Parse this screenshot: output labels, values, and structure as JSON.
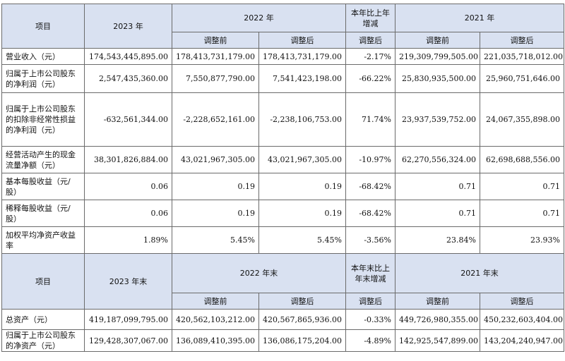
{
  "header1": {
    "item": "项目",
    "y2023": "2023 年",
    "y2022": "2022 年",
    "change": "本年比上年增减",
    "y2021": "2021 年",
    "before": "调整前",
    "after": "调整后",
    "change_after": "调整后",
    "before2": "调整前",
    "after2": "调整后"
  },
  "rows1": [
    {
      "label": "营业收入（元）",
      "v2023": "174,543,445,895.00",
      "v2022b": "178,413,731,179.00",
      "v2022a": "178,413,731,179.00",
      "chg": "-2.17%",
      "v2021b": "219,309,799,505.00",
      "v2021a": "221,035,718,012.00"
    },
    {
      "label": "归属于上市公司股东的净利润（元）",
      "v2023": "2,547,435,360.00",
      "v2022b": "7,550,877,790.00",
      "v2022a": "7,541,423,198.00",
      "chg": "-66.22%",
      "v2021b": "25,830,935,500.00",
      "v2021a": "25,960,751,646.00"
    },
    {
      "label": "归属于上市公司股东的扣除非经常性损益的净利润（元）",
      "v2023": "-632,561,344.00",
      "v2022b": "-2,228,652,161.00",
      "v2022a": "-2,238,106,753.00",
      "chg": "71.74%",
      "v2021b": "23,937,539,752.00",
      "v2021a": "24,067,355,898.00"
    },
    {
      "label": "经营活动产生的现金流量净额（元）",
      "v2023": "38,301,826,884.00",
      "v2022b": "43,021,967,305.00",
      "v2022a": "43,021,967,305.00",
      "chg": "-10.97%",
      "v2021b": "62,270,556,324.00",
      "v2021a": "62,698,688,556.00"
    },
    {
      "label": "基本每股收益（元/股）",
      "v2023": "0.06",
      "v2022b": "0.19",
      "v2022a": "0.19",
      "chg": "-68.42%",
      "v2021b": "0.71",
      "v2021a": "0.71"
    },
    {
      "label": "稀释每股收益（元/股）",
      "v2023": "0.06",
      "v2022b": "0.19",
      "v2022a": "0.19",
      "chg": "-68.42%",
      "v2021b": "0.71",
      "v2021a": "0.71"
    },
    {
      "label": "加权平均净资产收益率",
      "v2023": "1.89%",
      "v2022b": "5.45%",
      "v2022a": "5.45%",
      "chg": "-3.56%",
      "v2021b": "23.84%",
      "v2021a": "23.93%"
    }
  ],
  "header2": {
    "item": "项目",
    "y2023": "2023 年末",
    "y2022": "2022 年末",
    "change": "本年末比上年末增减",
    "y2021": "2021 年末",
    "before": "调整前",
    "after": "调整后",
    "change_after": "调整后",
    "before2": "调整前",
    "after2": "调整后"
  },
  "rows2": [
    {
      "label": "总资产（元）",
      "v2023": "419,187,099,795.00",
      "v2022b": "420,562,103,212.00",
      "v2022a": "420,567,865,936.00",
      "chg": "-0.33%",
      "v2021b": "449,726,980,355.00",
      "v2021a": "450,232,603,404.00"
    },
    {
      "label": "归属于上市公司股东的净资产（元）",
      "v2023": "129,428,307,067.00",
      "v2022b": "136,089,410,395.00",
      "v2022a": "136,086,175,204.00",
      "chg": "-4.89%",
      "v2021b": "142,925,547,899.00",
      "v2021a": "143,204,240,947.00"
    }
  ]
}
